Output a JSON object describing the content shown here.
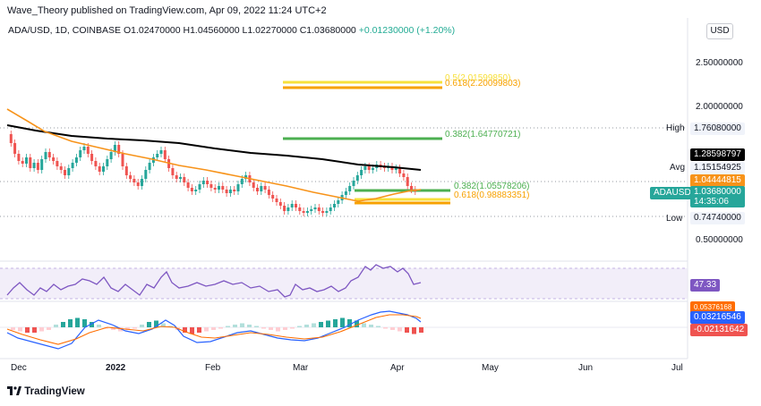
{
  "header": {
    "publisher_line": "Wave_Theory published on TradingView.com, Apr 09, 2022 11:24 UTC+2",
    "legend_prefix": "ADA/USD, 1D, COINBASE",
    "legend_values": "O1.02470000 H1.04560000 L1.02270000 C1.03680000",
    "legend_change": "+0.01230000 (+1.20%)"
  },
  "toolbar": {
    "currency_label": "USD"
  },
  "price_axis": {
    "ticks": [
      "2.50000000",
      "2.00000000",
      "1.76080000",
      "1.28598797",
      "1.15154925",
      "1.04444815",
      "1.03680000",
      "0.74740000",
      "0.50000000"
    ],
    "high_label": "High",
    "high_value": "1.76080000",
    "ma_black_value": "1.28598797",
    "avg_label": "Avg",
    "avg_value": "1.15154925",
    "ma_orange_value": "1.04444815",
    "symbol_tag": "ADAUSD",
    "last_price": "1.03680000",
    "countdown": "14:35:06",
    "low_label": "Low",
    "low_value": "0.74740000"
  },
  "fib_levels": [
    {
      "label": "0.618(2.20099803)",
      "color": "#f7a100"
    },
    {
      "label": "0.382(1.64770721)",
      "color": "#4caf50"
    },
    {
      "label": "0.382(1.05578206)",
      "color": "#4caf50"
    },
    {
      "label": "0.618(0.98883351)",
      "color": "#f7a100"
    }
  ],
  "indicators": {
    "rsi_value": "47.33",
    "macd_values": [
      "0.05376168",
      "0.03216546",
      "-0.02131642"
    ]
  },
  "time_axis": [
    "Dec",
    "2022",
    "Feb",
    "Mar",
    "Apr",
    "May",
    "Jun",
    "Jul"
  ],
  "footer": {
    "brand": "TradingView"
  },
  "colors": {
    "bull": "#26a69a",
    "bear": "#ef5350",
    "ma_orange": "#f7931a",
    "ma_black": "#000000",
    "rsi": "#7e57c2",
    "macd": "#2962ff",
    "signal": "#ff6d00",
    "fib_green": "#4caf50",
    "fib_orange": "#f7a100"
  }
}
